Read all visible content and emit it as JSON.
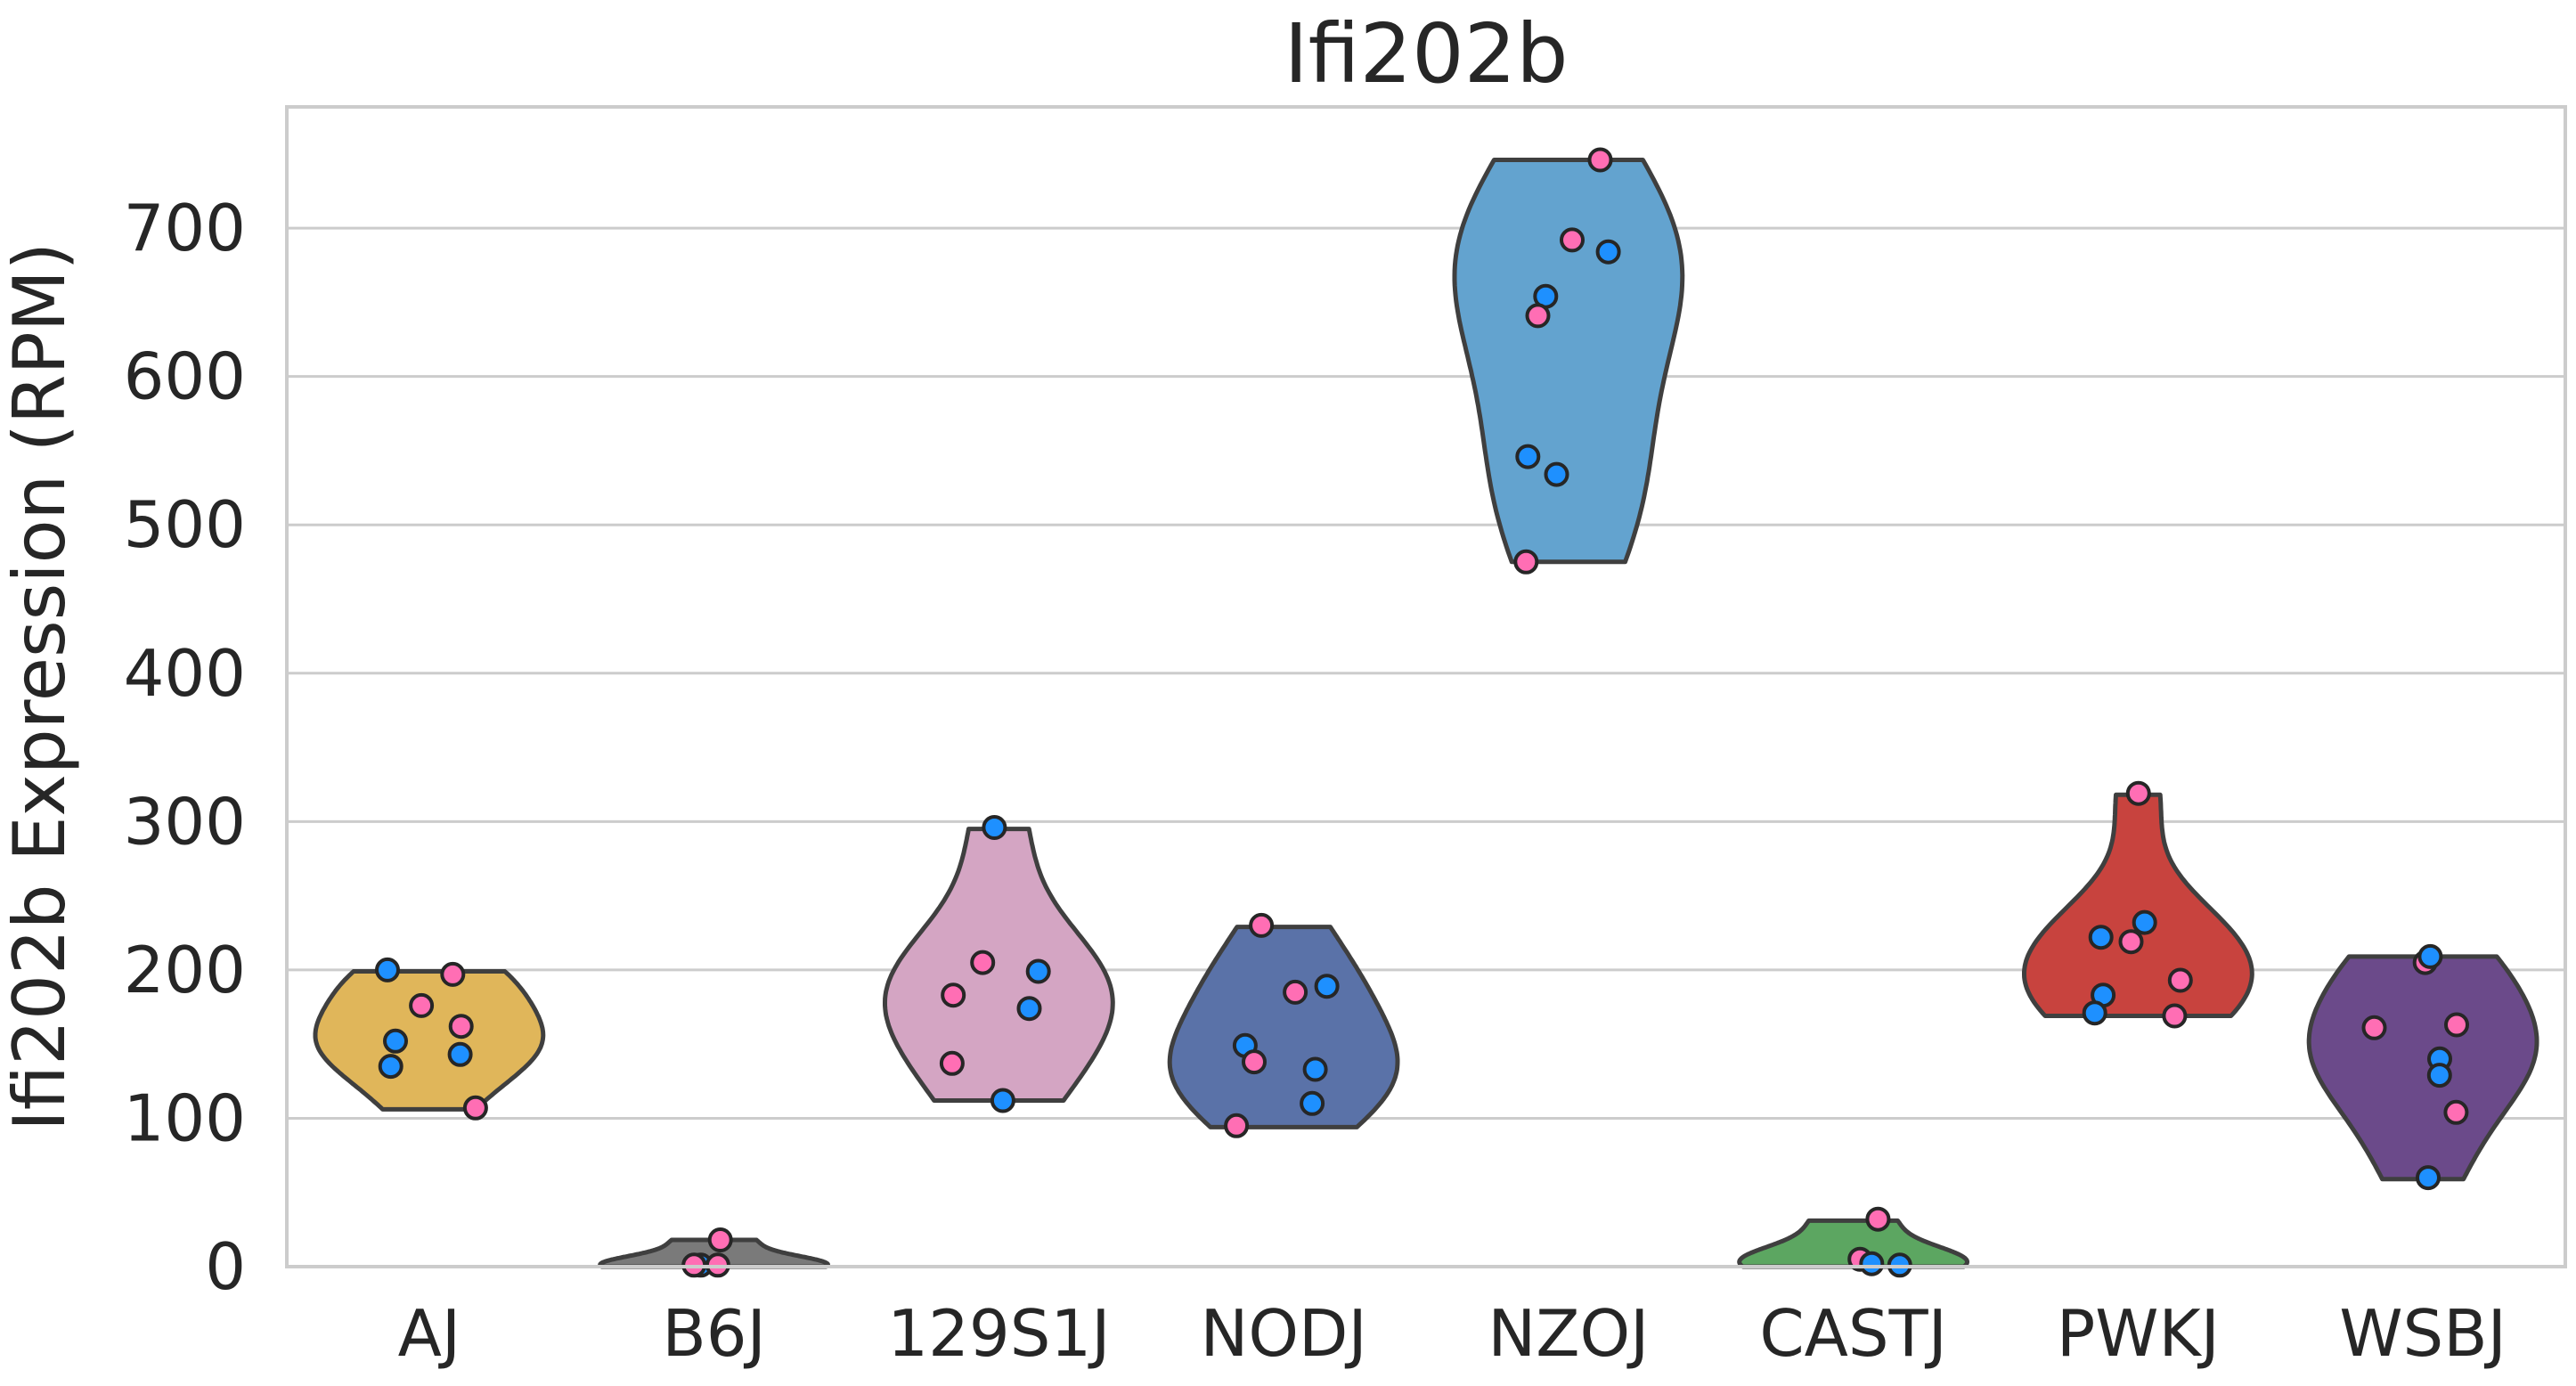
{
  "chart_data": {
    "type": "violin",
    "title": "Ifi202b",
    "xlabel": "",
    "ylabel": "Ifi202b Expression (RPM)",
    "ylim": [
      0,
      770
    ],
    "yticks": [
      0,
      100,
      200,
      300,
      400,
      500,
      600,
      700
    ],
    "grid": "horizontal",
    "point_colors": {
      "pink": "#ff6eb4",
      "blue": "#1e90ff"
    },
    "groups": [
      {
        "name": "AJ",
        "color": "#e0b65a",
        "min": 106,
        "max": 199,
        "points": [
          {
            "y": 197,
            "c": "pink"
          },
          {
            "y": 200,
            "c": "blue"
          },
          {
            "y": 176,
            "c": "pink"
          },
          {
            "y": 162,
            "c": "pink"
          },
          {
            "y": 152,
            "c": "blue"
          },
          {
            "y": 143,
            "c": "blue"
          },
          {
            "y": 135,
            "c": "blue"
          },
          {
            "y": 107,
            "c": "pink"
          }
        ]
      },
      {
        "name": "B6J",
        "color": "#7a7a7a",
        "min": 0,
        "max": 18,
        "points": [
          {
            "y": 18,
            "c": "pink"
          },
          {
            "y": 1,
            "c": "blue"
          },
          {
            "y": 1,
            "c": "pink"
          },
          {
            "y": 1,
            "c": "pink"
          }
        ]
      },
      {
        "name": "129S1J",
        "color": "#d4a5c3",
        "min": 112,
        "max": 295,
        "points": [
          {
            "y": 296,
            "c": "blue"
          },
          {
            "y": 205,
            "c": "pink"
          },
          {
            "y": 199,
            "c": "blue"
          },
          {
            "y": 183,
            "c": "pink"
          },
          {
            "y": 174,
            "c": "blue"
          },
          {
            "y": 137,
            "c": "pink"
          },
          {
            "y": 112,
            "c": "blue"
          }
        ]
      },
      {
        "name": "NODJ",
        "color": "#5a72a8",
        "min": 94,
        "max": 229,
        "points": [
          {
            "y": 230,
            "c": "pink"
          },
          {
            "y": 189,
            "c": "blue"
          },
          {
            "y": 185,
            "c": "pink"
          },
          {
            "y": 149,
            "c": "blue"
          },
          {
            "y": 138,
            "c": "pink"
          },
          {
            "y": 133,
            "c": "blue"
          },
          {
            "y": 110,
            "c": "blue"
          },
          {
            "y": 95,
            "c": "pink"
          }
        ]
      },
      {
        "name": "NZOJ",
        "color": "#63a3cf",
        "min": 475,
        "max": 746,
        "points": [
          {
            "y": 746,
            "c": "pink"
          },
          {
            "y": 692,
            "c": "pink"
          },
          {
            "y": 684,
            "c": "blue"
          },
          {
            "y": 654,
            "c": "blue"
          },
          {
            "y": 641,
            "c": "pink"
          },
          {
            "y": 546,
            "c": "blue"
          },
          {
            "y": 534,
            "c": "blue"
          },
          {
            "y": 475,
            "c": "pink"
          }
        ]
      },
      {
        "name": "CASTJ",
        "color": "#5ca661",
        "min": 0,
        "max": 31,
        "points": [
          {
            "y": 32,
            "c": "pink"
          },
          {
            "y": 5,
            "c": "pink"
          },
          {
            "y": 2,
            "c": "blue"
          },
          {
            "y": 1,
            "c": "blue"
          }
        ]
      },
      {
        "name": "PWKJ",
        "color": "#c8433e",
        "min": 169,
        "max": 318,
        "points": [
          {
            "y": 319,
            "c": "pink"
          },
          {
            "y": 232,
            "c": "blue"
          },
          {
            "y": 222,
            "c": "blue"
          },
          {
            "y": 219,
            "c": "pink"
          },
          {
            "y": 193,
            "c": "pink"
          },
          {
            "y": 183,
            "c": "blue"
          },
          {
            "y": 171,
            "c": "blue"
          },
          {
            "y": 169,
            "c": "pink"
          }
        ]
      },
      {
        "name": "WSBJ",
        "color": "#6b4a8a",
        "min": 59,
        "max": 209,
        "points": [
          {
            "y": 205,
            "c": "pink"
          },
          {
            "y": 209,
            "c": "blue"
          },
          {
            "y": 163,
            "c": "pink"
          },
          {
            "y": 161,
            "c": "pink"
          },
          {
            "y": 140,
            "c": "blue"
          },
          {
            "y": 129,
            "c": "blue"
          },
          {
            "y": 104,
            "c": "pink"
          },
          {
            "y": 60,
            "c": "blue"
          }
        ]
      }
    ]
  }
}
